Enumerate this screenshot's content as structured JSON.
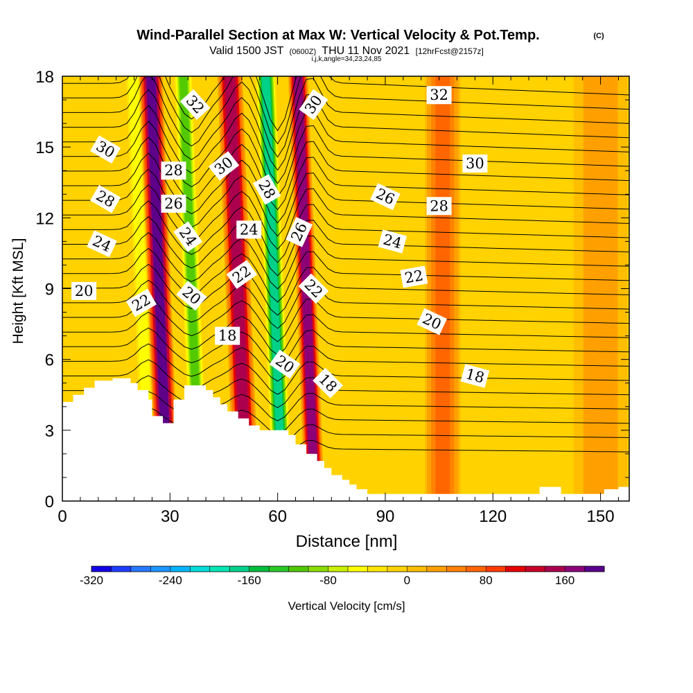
{
  "chart_data": {
    "type": "heatmap",
    "title": "Wind-Parallel Section at Max W: Vertical Velocity & Pot.Temp.",
    "title_mark": "(C)",
    "subtitle": {
      "valid": "Valid 1500 JST",
      "z": "(0600Z)",
      "date": "THU 11 Nov 2021",
      "fcst": "[12hrFcst@2157z]"
    },
    "indices": "i,j,k,angle=34,23,24,85",
    "xlabel": "Distance [nm]",
    "ylabel": "Height [Kft MSL]",
    "xlim": [
      0,
      158
    ],
    "ylim": [
      0,
      18
    ],
    "xticks": [
      0,
      30,
      60,
      90,
      120,
      150
    ],
    "yticks": [
      0,
      3,
      6,
      9,
      12,
      15,
      18
    ],
    "xtick_labels": [
      "0",
      "30",
      "60",
      "90",
      "120",
      "150"
    ],
    "ytick_labels": [
      "0",
      "3",
      "6",
      "9",
      "12",
      "15",
      "18"
    ],
    "colorbar": {
      "label": "Vertical Velocity [cm/s]",
      "min": -320,
      "max": 200,
      "step": 20,
      "tick_values": [
        -320,
        -240,
        -160,
        -80,
        0,
        80,
        160
      ],
      "tick_labels": [
        "-320",
        "-240",
        "-160",
        "-80",
        "0",
        "80",
        "160"
      ],
      "colors": [
        "#1400e6",
        "#1e3cff",
        "#2878ff",
        "#1e96ff",
        "#00b4ff",
        "#00dcdc",
        "#00e6b4",
        "#00d28c",
        "#00be3c",
        "#28c828",
        "#50c800",
        "#8cdc00",
        "#c8f000",
        "#ffff00",
        "#ffe600",
        "#ffd200",
        "#ffbe00",
        "#ffa000",
        "#ff8200",
        "#ff6400",
        "#ff3c00",
        "#e60000",
        "#c80028",
        "#aa0050",
        "#8c0078",
        "#5a008c"
      ]
    },
    "vertical_velocity_bands": [
      {
        "x": 22,
        "width": 2.0,
        "w": -60
      },
      {
        "x": 27,
        "width": 2.6,
        "w": 180
      },
      {
        "x": 36,
        "width": 2.2,
        "w": -110
      },
      {
        "x": 49,
        "width": 2.8,
        "w": 150
      },
      {
        "x": 59,
        "width": 2.2,
        "w": -170
      },
      {
        "x": 68,
        "width": 2.2,
        "w": 170
      },
      {
        "x": 106,
        "width": 4.0,
        "w": 60
      },
      {
        "x": 150,
        "width": 6.0,
        "w": 30
      }
    ],
    "theta_contour_labels": [
      {
        "value": "32",
        "x": 37,
        "y": 16.8,
        "angle": 48
      },
      {
        "value": "30",
        "x": 12,
        "y": 14.9,
        "angle": 30
      },
      {
        "value": "28",
        "x": 31,
        "y": 14.0,
        "angle": 0
      },
      {
        "value": "30",
        "x": 45,
        "y": 14.2,
        "angle": -38
      },
      {
        "value": "28",
        "x": 12,
        "y": 12.8,
        "angle": 30
      },
      {
        "value": "26",
        "x": 31,
        "y": 12.6,
        "angle": 0
      },
      {
        "value": "28",
        "x": 57,
        "y": 13.2,
        "angle": 60
      },
      {
        "value": "24",
        "x": 11,
        "y": 10.9,
        "angle": 25
      },
      {
        "value": "24",
        "x": 35,
        "y": 11.2,
        "angle": 55
      },
      {
        "value": "24",
        "x": 52,
        "y": 11.5,
        "angle": 0
      },
      {
        "value": "26",
        "x": 66,
        "y": 11.4,
        "angle": -65
      },
      {
        "value": "22",
        "x": 50,
        "y": 9.6,
        "angle": -35
      },
      {
        "value": "20",
        "x": 6,
        "y": 8.9,
        "angle": 0
      },
      {
        "value": "22",
        "x": 22,
        "y": 8.4,
        "angle": -30
      },
      {
        "value": "20",
        "x": 36,
        "y": 8.7,
        "angle": 40
      },
      {
        "value": "22",
        "x": 70,
        "y": 9.0,
        "angle": 45
      },
      {
        "value": "18",
        "x": 46,
        "y": 7.0,
        "angle": 0
      },
      {
        "value": "20",
        "x": 62,
        "y": 5.8,
        "angle": 35
      },
      {
        "value": "18",
        "x": 74,
        "y": 5.0,
        "angle": 45
      },
      {
        "value": "30",
        "x": 70,
        "y": 16.8,
        "angle": -55
      },
      {
        "value": "32",
        "x": 105,
        "y": 17.2,
        "angle": 0
      },
      {
        "value": "30",
        "x": 115,
        "y": 14.3,
        "angle": 0
      },
      {
        "value": "26",
        "x": 90,
        "y": 12.9,
        "angle": 25
      },
      {
        "value": "28",
        "x": 105,
        "y": 12.5,
        "angle": 0
      },
      {
        "value": "24",
        "x": 92,
        "y": 11.0,
        "angle": 15
      },
      {
        "value": "22",
        "x": 98,
        "y": 9.5,
        "angle": -10
      },
      {
        "value": "20",
        "x": 103,
        "y": 7.6,
        "angle": 25
      },
      {
        "value": "18",
        "x": 115,
        "y": 5.3,
        "angle": 15
      }
    ],
    "terrain_profile": [
      [
        0,
        4.2
      ],
      [
        3,
        4.2
      ],
      [
        3,
        4.5
      ],
      [
        6,
        4.5
      ],
      [
        6,
        4.8
      ],
      [
        9,
        4.8
      ],
      [
        9,
        5.1
      ],
      [
        14,
        5.1
      ],
      [
        14,
        5.2
      ],
      [
        19,
        5.2
      ],
      [
        19,
        5.0
      ],
      [
        21,
        5.0
      ],
      [
        21,
        4.7
      ],
      [
        24,
        4.7
      ],
      [
        24,
        4.3
      ],
      [
        25,
        4.3
      ],
      [
        25,
        3.6
      ],
      [
        28,
        3.6
      ],
      [
        28,
        3.3
      ],
      [
        31,
        3.3
      ],
      [
        31,
        4.3
      ],
      [
        34,
        4.3
      ],
      [
        34,
        4.9
      ],
      [
        40,
        4.9
      ],
      [
        40,
        4.7
      ],
      [
        42,
        4.7
      ],
      [
        42,
        4.4
      ],
      [
        44,
        4.4
      ],
      [
        44,
        4.1
      ],
      [
        46,
        4.1
      ],
      [
        46,
        3.8
      ],
      [
        49,
        3.8
      ],
      [
        49,
        3.5
      ],
      [
        52,
        3.5
      ],
      [
        52,
        3.2
      ],
      [
        55,
        3.2
      ],
      [
        55,
        3.0
      ],
      [
        58,
        3.0
      ],
      [
        58,
        3.0
      ],
      [
        63,
        3.0
      ],
      [
        63,
        2.8
      ],
      [
        65,
        2.8
      ],
      [
        65,
        2.4
      ],
      [
        68,
        2.4
      ],
      [
        68,
        2.0
      ],
      [
        71,
        2.0
      ],
      [
        71,
        1.7
      ],
      [
        73,
        1.7
      ],
      [
        73,
        1.4
      ],
      [
        75,
        1.4
      ],
      [
        75,
        1.1
      ],
      [
        78,
        1.1
      ],
      [
        78,
        0.9
      ],
      [
        80,
        0.9
      ],
      [
        80,
        0.7
      ],
      [
        82,
        0.7
      ],
      [
        82,
        0.5
      ],
      [
        85,
        0.5
      ],
      [
        85,
        0.3
      ],
      [
        133,
        0.3
      ],
      [
        133,
        0.6
      ],
      [
        139,
        0.6
      ],
      [
        139,
        0.3
      ],
      [
        151,
        0.3
      ],
      [
        151,
        0.5
      ],
      [
        155,
        0.5
      ],
      [
        155,
        0.6
      ],
      [
        158,
        0.6
      ]
    ]
  }
}
